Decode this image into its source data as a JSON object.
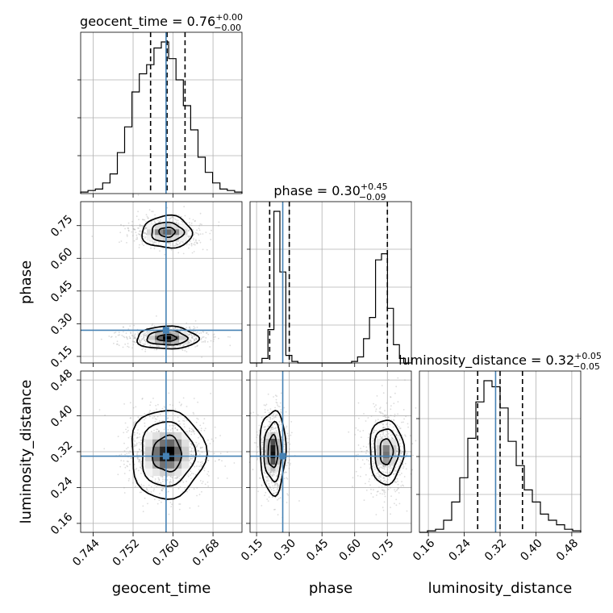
{
  "chart_data": {
    "type": "corner",
    "parameters": [
      {
        "key": "geocent_time",
        "label": "geocent_time",
        "range": [
          0.7415,
          0.7738
        ],
        "ticks": [
          0.744,
          0.752,
          0.76,
          0.768
        ],
        "tick_labels": [
          "0.744",
          "0.752",
          "0.760",
          "0.768"
        ],
        "title_prefix": "geocent_time = 0.76",
        "title_plus": "+0.00",
        "title_minus": "−0.00",
        "truth": 0.7586,
        "quantiles": [
          0.7555,
          0.7588,
          0.7624
        ],
        "hist_values": [
          1,
          2,
          3,
          7,
          13,
          27,
          44,
          67,
          79,
          85,
          96,
          100,
          89,
          75,
          58,
          42,
          24,
          14,
          7,
          3,
          2,
          1
        ]
      },
      {
        "key": "phase",
        "label": "phase",
        "range": [
          0.12,
          0.86
        ],
        "ticks": [
          0.15,
          0.3,
          0.45,
          0.6,
          0.75
        ],
        "tick_labels": [
          "0.15",
          "0.30",
          "0.45",
          "0.60",
          "0.75"
        ],
        "title_prefix": "phase = 0.30",
        "title_plus": "+0.45",
        "title_minus": "−0.09",
        "truth": 0.27,
        "quantiles": [
          0.21,
          0.3,
          0.75
        ],
        "hist_values": [
          0,
          0,
          3,
          22,
          100,
          60,
          5,
          1,
          0,
          0,
          0,
          0,
          0,
          0,
          0,
          0,
          0,
          1,
          4,
          16,
          30,
          68,
          72,
          36,
          12,
          3,
          0
        ]
      },
      {
        "key": "luminosity_distance",
        "label": "luminosity_distance",
        "range": [
          0.14,
          0.5
        ],
        "ticks": [
          0.16,
          0.24,
          0.32,
          0.4,
          0.48
        ],
        "tick_labels": [
          "0.16",
          "0.24",
          "0.32",
          "0.40",
          "0.48"
        ],
        "title_prefix": "luminosity_distance = 0.32",
        "title_plus": "+0.05",
        "title_minus": "−0.05",
        "truth": 0.31,
        "quantiles": [
          0.27,
          0.32,
          0.37
        ],
        "hist_values": [
          0,
          1,
          2,
          8,
          20,
          36,
          62,
          86,
          100,
          96,
          82,
          60,
          44,
          28,
          20,
          12,
          8,
          5,
          2,
          1
        ]
      }
    ],
    "truth_color": "#4682b4",
    "grid": true
  }
}
